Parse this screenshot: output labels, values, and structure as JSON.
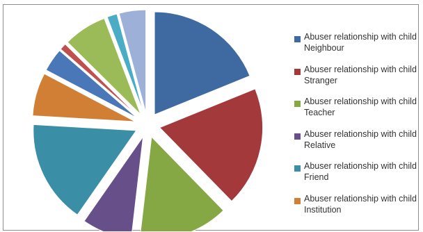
{
  "chart_data": {
    "type": "pie",
    "exploded": true,
    "legend_position": "right",
    "slices": [
      {
        "label": "Abuser relationship with child Neighbour",
        "value": 18.0,
        "color": "#3F6AA1"
      },
      {
        "label": "Abuser relationship with child Stranger",
        "value": 18.0,
        "color": "#A3393A"
      },
      {
        "label": "Abuser relationship with child Teacher",
        "value": 13.5,
        "color": "#86A844"
      },
      {
        "label": "Abuser relationship with child Relative",
        "value": 7.5,
        "color": "#67508A"
      },
      {
        "label": "Abuser relationship with child Friend",
        "value": 15.5,
        "color": "#3A8EA5"
      },
      {
        "label": "Abuser relationship with child Institution",
        "value": 6.5,
        "color": "#D17F34"
      },
      {
        "label": "",
        "value": 3.5,
        "color": "#4A77B8"
      },
      {
        "label": "",
        "value": 1.0,
        "color": "#C0504D"
      },
      {
        "label": "",
        "value": 6.5,
        "color": "#9BBB59"
      },
      {
        "label": "",
        "value": 1.5,
        "color": "#4BACC6"
      },
      {
        "label": "",
        "value": 4.0,
        "color": "#9DB1D8"
      }
    ]
  }
}
